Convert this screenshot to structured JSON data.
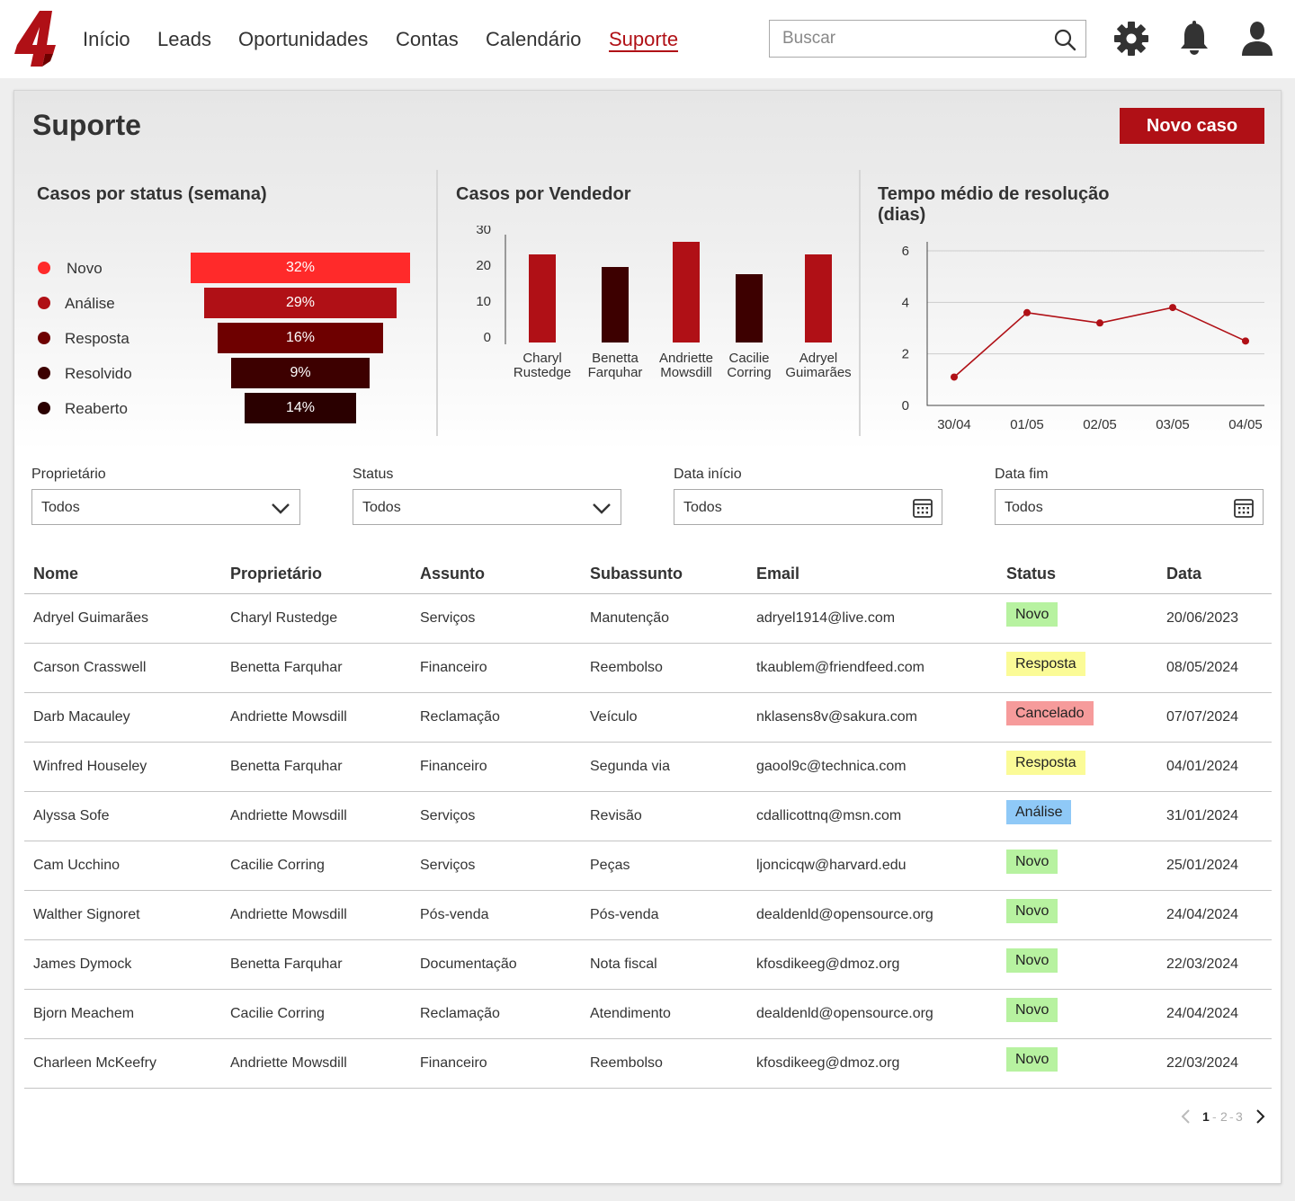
{
  "nav": {
    "logo_text": "4",
    "items": [
      "Início",
      "Leads",
      "Oportunidades",
      "Contas",
      "Calendário",
      "Suporte"
    ],
    "active": "Suporte"
  },
  "search": {
    "placeholder": "Buscar"
  },
  "icons": {
    "search": "search-icon",
    "settings": "gear-icon",
    "notifications": "bell-icon",
    "profile": "user-icon"
  },
  "page": {
    "title": "Suporte",
    "new_case_label": "Novo caso"
  },
  "colors": {
    "accent": "#b01016",
    "funnel": [
      "#ff2a2a",
      "#b01016",
      "#6e0000",
      "#3d0000",
      "#2a0000"
    ]
  },
  "funnel_card": {
    "title": "Casos por status (semana)",
    "rows": [
      {
        "label": "Novo",
        "value": "32%"
      },
      {
        "label": "Análise",
        "value": "29%"
      },
      {
        "label": "Resposta",
        "value": "16%"
      },
      {
        "label": "Resolvido",
        "value": "9%"
      },
      {
        "label": "Reaberto",
        "value": "14%"
      }
    ]
  },
  "vendor_card": {
    "title": "Casos por Vendedor"
  },
  "time_card": {
    "title": "Tempo médio de resolução (dias)"
  },
  "chart_data": [
    {
      "type": "bar",
      "title": "Casos por Vendedor",
      "categories": [
        "Charyl Rustedge",
        "Benetta Farquhar",
        "Andriette Mowsdill",
        "Cacilie Corring",
        "Adryel Guimarães"
      ],
      "values": [
        24.5,
        21,
        28,
        19,
        24.5
      ],
      "bar_colors": [
        "#b01016",
        "#3d0000",
        "#b01016",
        "#3d0000",
        "#b01016"
      ],
      "yticks": [
        0,
        10,
        20,
        30
      ],
      "ylim": [
        0,
        30
      ],
      "xlabel": "",
      "ylabel": ""
    },
    {
      "type": "line",
      "title": "Tempo médio de resolução (dias)",
      "x": [
        "30/04",
        "01/05",
        "02/05",
        "03/05",
        "04/05"
      ],
      "values": [
        1.1,
        3.6,
        3.2,
        3.8,
        2.5
      ],
      "yticks": [
        0,
        2,
        4,
        6
      ],
      "ylim": [
        0,
        6
      ],
      "grid": true,
      "color": "#b01016",
      "xlabel": "",
      "ylabel": ""
    }
  ],
  "filters": [
    {
      "label": "Proprietário",
      "value": "Todos",
      "kind": "dropdown"
    },
    {
      "label": "Status",
      "value": "Todos",
      "kind": "dropdown"
    },
    {
      "label": "Data início",
      "value": "Todos",
      "kind": "date"
    },
    {
      "label": "Data fim",
      "value": "Todos",
      "kind": "date"
    }
  ],
  "table": {
    "columns": [
      "Nome",
      "Proprietário",
      "Assunto",
      "Subassunto",
      "Email",
      "Status",
      "Data"
    ],
    "status_colors": {
      "Novo": "#b7f2a0",
      "Resposta": "#fbfb97",
      "Cancelado": "#f69b9b",
      "Análise": "#8fc9f7"
    },
    "rows": [
      [
        "Adryel Guimarães",
        "Charyl Rustedge",
        "Serviços",
        "Manutenção",
        "adryel1914@live.com",
        "Novo",
        "20/06/2023"
      ],
      [
        "Carson Crasswell",
        "Benetta Farquhar",
        "Financeiro",
        "Reembolso",
        "tkaublem@friendfeed.com",
        "Resposta",
        "08/05/2024"
      ],
      [
        "Darb Macauley",
        "Andriette Mowsdill",
        "Reclamação",
        "Veículo",
        "nklasens8v@sakura.com",
        "Cancelado",
        "07/07/2024"
      ],
      [
        "Winfred Houseley",
        "Benetta Farquhar",
        "Financeiro",
        "Segunda via",
        "gaool9c@technica.com",
        "Resposta",
        "04/01/2024"
      ],
      [
        "Alyssa Sofe",
        "Andriette Mowsdill",
        "Serviços",
        "Revisão",
        "cdallicottnq@msn.com",
        "Análise",
        "31/01/2024"
      ],
      [
        "Cam Ucchino",
        "Cacilie Corring",
        "Serviços",
        "Peças",
        "ljoncicqw@harvard.edu",
        "Novo",
        "25/01/2024"
      ],
      [
        "Walther Signoret",
        "Andriette Mowsdill",
        "Pós-venda",
        "Pós-venda",
        "dealdenld@opensource.org",
        "Novo",
        "24/04/2024"
      ],
      [
        "James Dymock",
        "Benetta Farquhar",
        "Documentação",
        "Nota fiscal",
        "kfosdikeeg@dmoz.org",
        "Novo",
        "22/03/2024"
      ],
      [
        "Bjorn Meachem",
        "Cacilie Corring",
        "Reclamação",
        "Atendimento",
        "dealdenld@opensource.org",
        "Novo",
        "24/04/2024"
      ],
      [
        "Charleen McKeefry",
        "Andriette Mowsdill",
        "Financeiro",
        "Reembolso",
        "kfosdikeeg@dmoz.org",
        "Novo",
        "22/03/2024"
      ]
    ]
  },
  "pagination": {
    "current": "1",
    "pages": [
      "1",
      "2",
      "3"
    ]
  }
}
